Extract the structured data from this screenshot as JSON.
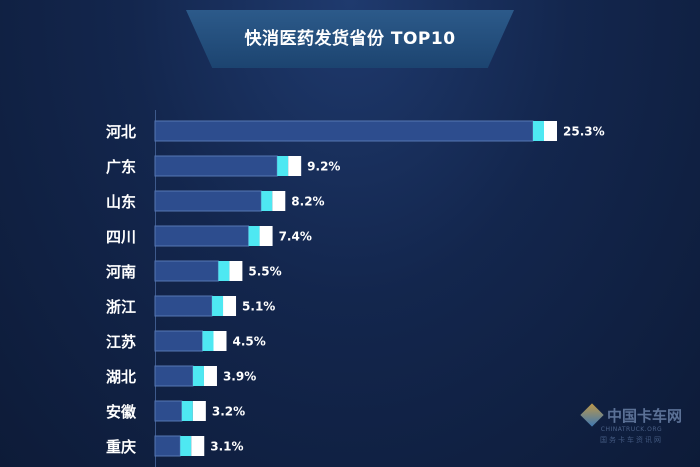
{
  "chart_data": {
    "type": "bar",
    "orientation": "horizontal",
    "title": "快消医药发货省份 TOP10",
    "categories": [
      "河北",
      "广东",
      "山东",
      "四川",
      "河南",
      "浙江",
      "江苏",
      "湖北",
      "安徽",
      "重庆"
    ],
    "values": [
      25.3,
      9.2,
      8.2,
      7.4,
      5.5,
      5.1,
      4.5,
      3.9,
      3.2,
      3.1
    ],
    "value_labels": [
      "25.3%",
      "9.2%",
      "8.2%",
      "7.4%",
      "5.5%",
      "5.1%",
      "4.5%",
      "3.9%",
      "3.2%",
      "3.1%"
    ],
    "xlabel": "",
    "ylabel": "",
    "grid": false,
    "legend": "none"
  },
  "colors": {
    "bar_fill": "#2d4d8e",
    "bar_border": "#5576b3",
    "tip_cyan": "#4ee8f2",
    "tip_white": "#ffffff"
  },
  "watermark": {
    "cn": "中国卡车网",
    "en": "CHINATRUCK.ORG",
    "sub": "国务卡车资讯网"
  }
}
